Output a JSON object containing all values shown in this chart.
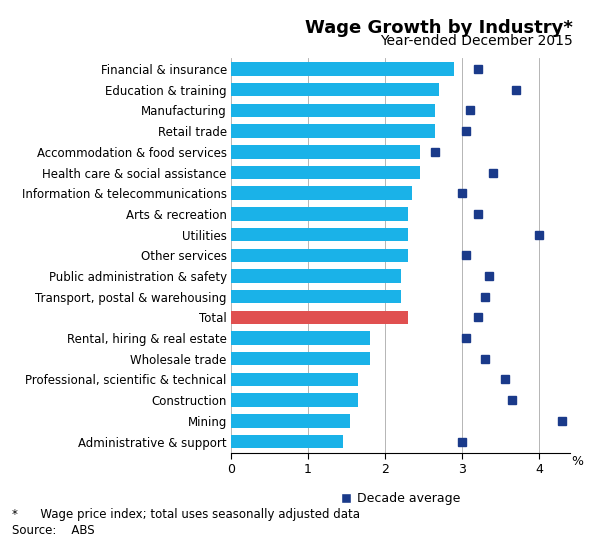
{
  "title": "Wage Growth by Industry*",
  "subtitle": "Year-ended December 2015",
  "footnote1": "*      Wage price index; total uses seasonally adjusted data",
  "footnote2": "Source:    ABS",
  "legend_label": "Decade average",
  "xlabel": "%",
  "categories": [
    "Financial & insurance",
    "Education & training",
    "Manufacturing",
    "Retail trade",
    "Accommodation & food services",
    "Health care & social assistance",
    "Information & telecommunications",
    "Arts & recreation",
    "Utilities",
    "Other services",
    "Public administration & safety",
    "Transport, postal & warehousing",
    "Total",
    "Rental, hiring & real estate",
    "Wholesale trade",
    "Professional, scientific & technical",
    "Construction",
    "Mining",
    "Administrative & support"
  ],
  "bar_values": [
    2.9,
    2.7,
    2.65,
    2.65,
    2.45,
    2.45,
    2.35,
    2.3,
    2.3,
    2.3,
    2.2,
    2.2,
    2.3,
    1.8,
    1.8,
    1.65,
    1.65,
    1.55,
    1.45
  ],
  "dot_values": [
    3.2,
    3.7,
    3.1,
    3.05,
    2.65,
    3.4,
    3.0,
    3.2,
    4.0,
    3.05,
    3.35,
    3.3,
    3.2,
    3.05,
    3.3,
    3.55,
    3.65,
    4.3,
    3.0
  ],
  "bar_color_default": "#1ab2e8",
  "bar_color_total": "#e05050",
  "dot_color": "#1a3a8a",
  "xlim": [
    0,
    4.4
  ],
  "xticks": [
    0,
    1,
    2,
    3,
    4
  ],
  "grid_color": "#aaaaaa",
  "title_fontsize": 13,
  "subtitle_fontsize": 10,
  "label_fontsize": 8.5,
  "tick_fontsize": 9,
  "footnote_fontsize": 8.5
}
